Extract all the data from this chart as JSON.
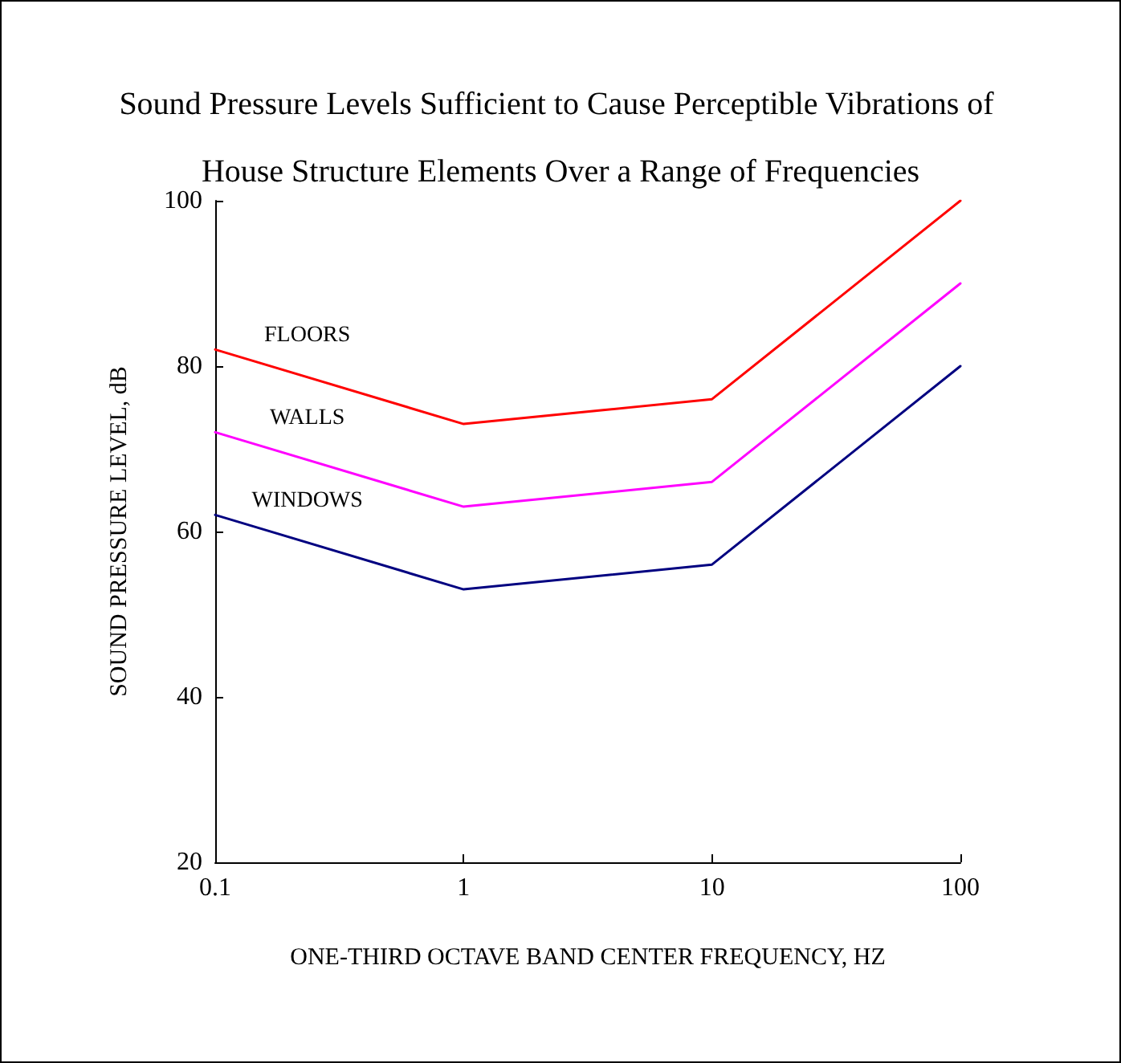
{
  "chart_data": {
    "type": "line",
    "title": "Sound Pressure Levels Sufficient to Cause Perceptible Vibrations of House Structure Elements Over a Range of Frequencies",
    "xlabel": "ONE-THIRD OCTAVE BAND CENTER FREQUENCY, HZ",
    "ylabel": "SOUND PRESSURE LEVEL, dB",
    "x": [
      0.1,
      1,
      10,
      100
    ],
    "series": [
      {
        "name": "FLOORS",
        "color": "#ff0000",
        "values": [
          82,
          73,
          76,
          100
        ]
      },
      {
        "name": "WALLS",
        "color": "#ff00ff",
        "values": [
          72,
          63,
          66,
          90
        ]
      },
      {
        "name": "WINDOWS",
        "color": "#000080",
        "values": [
          62,
          53,
          56,
          80
        ]
      }
    ],
    "log": "x",
    "xlim": [
      0.1,
      100
    ],
    "xticks": [
      0.1,
      1,
      10,
      100
    ],
    "ylim": [
      20,
      100
    ],
    "yticks": [
      20,
      40,
      60,
      80,
      100
    ],
    "grid": false,
    "legend": false,
    "marker": "none",
    "line_style": "solid"
  }
}
